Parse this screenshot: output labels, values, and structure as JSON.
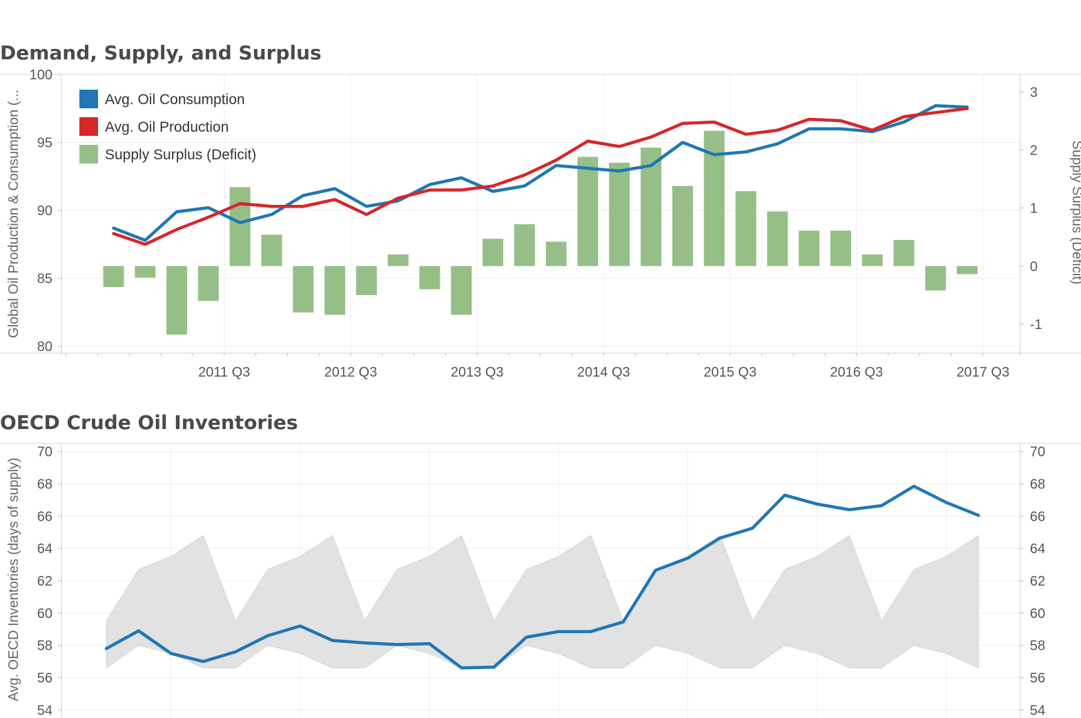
{
  "chart_data": [
    {
      "type": "line",
      "title": "Demand, Supply, and Surplus",
      "x": [
        "2010 Q3",
        "2010 Q4",
        "2011 Q1",
        "2011 Q2",
        "2011 Q3",
        "2011 Q4",
        "2012 Q1",
        "2012 Q2",
        "2012 Q3",
        "2012 Q4",
        "2013 Q1",
        "2013 Q2",
        "2013 Q3",
        "2013 Q4",
        "2014 Q1",
        "2014 Q2",
        "2014 Q3",
        "2014 Q4",
        "2015 Q1",
        "2015 Q2",
        "2015 Q3",
        "2015 Q4",
        "2016 Q1",
        "2016 Q2",
        "2016 Q3",
        "2016 Q4",
        "2017 Q1",
        "2017 Q2"
      ],
      "x_tick_labels": [
        "2011 Q3",
        "2012 Q3",
        "2013 Q3",
        "2014 Q3",
        "2015 Q3",
        "2016 Q3",
        "2017 Q3"
      ],
      "ylabel": "Global Oil Production & Consumption (...",
      "ylabel_right": "Supply Surplus (Deficit)",
      "ylim": [
        79.5,
        100
      ],
      "y_ticks": [
        80,
        85,
        90,
        95,
        100
      ],
      "ylim_right": [
        -1.5,
        3.3
      ],
      "y_ticks_right": [
        -1,
        0,
        1,
        2,
        3
      ],
      "legend_position": "top-left",
      "grid": true,
      "series": [
        {
          "name": "Avg. Oil Consumption",
          "kind": "line",
          "axis": "left",
          "color": "#1f77b4",
          "values": [
            88.7,
            87.8,
            89.9,
            90.2,
            89.1,
            89.7,
            91.1,
            91.6,
            90.3,
            90.7,
            91.9,
            92.4,
            91.4,
            91.8,
            93.3,
            93.1,
            92.9,
            93.3,
            95.0,
            94.1,
            94.3,
            94.9,
            96.0,
            96.0,
            95.8,
            96.5,
            97.7,
            97.6
          ]
        },
        {
          "name": "Avg. Oil Production",
          "kind": "line",
          "axis": "left",
          "color": "#d62728",
          "values": [
            88.3,
            87.5,
            88.6,
            89.5,
            90.5,
            90.3,
            90.3,
            90.8,
            89.7,
            90.9,
            91.5,
            91.5,
            91.8,
            92.6,
            93.7,
            95.1,
            94.7,
            95.4,
            96.4,
            96.5,
            95.6,
            95.9,
            96.7,
            96.6,
            95.9,
            96.9,
            97.2,
            97.5
          ]
        },
        {
          "name": "Supply Surplus (Deficit)",
          "kind": "bar",
          "axis": "right",
          "color": "#95bf87",
          "values": [
            -0.36,
            -0.2,
            -1.18,
            -0.6,
            1.36,
            0.54,
            -0.8,
            -0.84,
            -0.5,
            0.2,
            -0.4,
            -0.84,
            0.47,
            0.72,
            0.42,
            1.88,
            1.78,
            2.04,
            1.38,
            2.33,
            1.29,
            0.94,
            0.61,
            0.61,
            0.2,
            0.45,
            -0.42,
            -0.14
          ]
        }
      ]
    },
    {
      "type": "area",
      "title": "OECD Crude Oil Inventories",
      "x": [
        "2010 Q3",
        "2010 Q4",
        "2011 Q1",
        "2011 Q2",
        "2011 Q3",
        "2011 Q4",
        "2012 Q1",
        "2012 Q2",
        "2012 Q3",
        "2012 Q4",
        "2013 Q1",
        "2013 Q2",
        "2013 Q3",
        "2013 Q4",
        "2014 Q1",
        "2014 Q2",
        "2014 Q3",
        "2014 Q4",
        "2015 Q1",
        "2015 Q2",
        "2015 Q3",
        "2015 Q4",
        "2016 Q1",
        "2016 Q2",
        "2016 Q3",
        "2016 Q4",
        "2017 Q1",
        "2017 Q2"
      ],
      "ylabel": "Avg. OECD Inventories (days of supply)",
      "ylim": [
        53.5,
        70.5
      ],
      "y_ticks": [
        54,
        56,
        58,
        60,
        62,
        64,
        66,
        68,
        70
      ],
      "y_ticks_right": [
        54,
        56,
        58,
        60,
        62,
        64,
        66,
        68,
        70
      ],
      "grid": true,
      "series": [
        {
          "name": "Avg. OECD Inventories (days of supply)",
          "kind": "line",
          "color": "#1f77b4",
          "values": [
            57.8,
            58.9,
            57.5,
            57.0,
            57.6,
            58.6,
            59.2,
            58.3,
            58.15,
            58.05,
            58.1,
            56.6,
            56.65,
            58.5,
            58.85,
            58.85,
            59.45,
            62.65,
            63.4,
            64.65,
            65.25,
            67.3,
            66.75,
            66.4,
            66.65,
            67.85,
            66.85,
            66.05
          ]
        },
        {
          "name": "",
          "kind": "band",
          "color": "#e2e2e2",
          "upper": [
            59.5,
            62.7,
            63.5,
            64.8,
            59.5,
            62.7,
            63.5,
            64.8,
            59.5,
            62.7,
            63.5,
            64.8,
            59.5,
            62.7,
            63.5,
            64.8,
            59.5,
            62.7,
            63.5,
            64.8,
            59.5,
            62.7,
            63.5,
            64.8,
            59.5,
            62.7,
            63.5,
            64.8
          ],
          "lower": [
            56.6,
            58.0,
            57.5,
            56.6,
            56.6,
            58.0,
            57.5,
            56.6,
            56.6,
            58.0,
            57.5,
            56.6,
            56.6,
            58.0,
            57.5,
            56.6,
            56.6,
            58.0,
            57.5,
            56.6,
            56.6,
            58.0,
            57.5,
            56.6,
            56.6,
            58.0,
            57.5,
            56.6
          ]
        }
      ]
    }
  ]
}
